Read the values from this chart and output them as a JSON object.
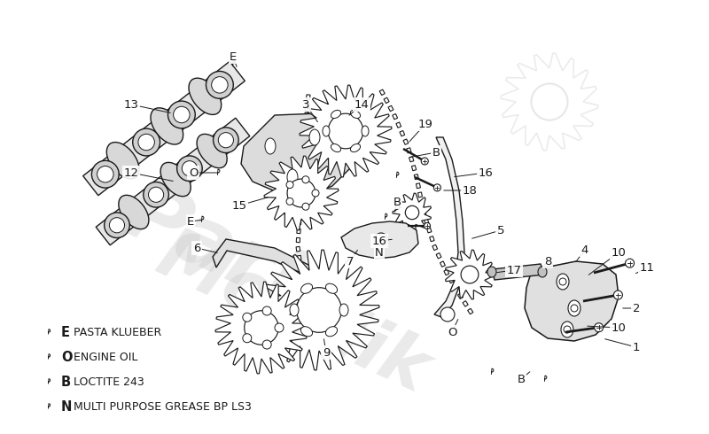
{
  "background_color": "#ffffff",
  "watermark_color": "#c8c8c8",
  "watermark_alpha": 0.45,
  "drawing_color": "#1a1a1a",
  "legend_items": [
    {
      "letter": "E",
      "description": "PASTA KLUEBER"
    },
    {
      "letter": "O",
      "description": "ENGINE OIL"
    },
    {
      "letter": "B",
      "description": "LOCTITE 243"
    },
    {
      "letter": "N",
      "description": "MULTI PURPOSE GREASE BP LS3"
    }
  ],
  "figsize": [
    8.0,
    4.9
  ],
  "dpi": 100
}
